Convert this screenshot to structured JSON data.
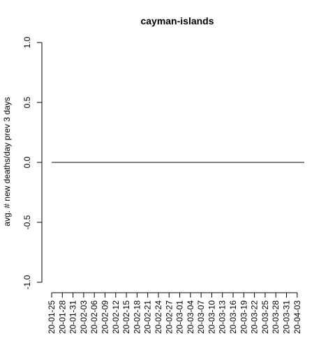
{
  "chart_data": {
    "type": "line",
    "title": "cayman-islands",
    "xlabel": "",
    "ylabel": "avg. # new deaths/day prev  3  days",
    "ylim": [
      -1.0,
      1.0
    ],
    "y_ticks": [
      "-1.0",
      "-0.5",
      "0.0",
      "0.5",
      "1.0"
    ],
    "x_start": "2020-01-25",
    "x_end": "2020-04-05",
    "x_tick_labels": [
      "20-01-25",
      "20-01-28",
      "20-01-31",
      "20-02-03",
      "20-02-06",
      "20-02-09",
      "20-02-12",
      "20-02-15",
      "20-02-18",
      "20-02-21",
      "20-02-24",
      "20-02-27",
      "20-03-01",
      "20-03-04",
      "20-03-07",
      "20-03-10",
      "20-03-13",
      "20-03-16",
      "20-03-19",
      "20-03-22",
      "20-03-25",
      "20-03-28",
      "20-03-31",
      "20-04-03"
    ],
    "grid": false,
    "series": [
      {
        "color": "#000000",
        "y_constant": 0.0
      }
    ]
  }
}
